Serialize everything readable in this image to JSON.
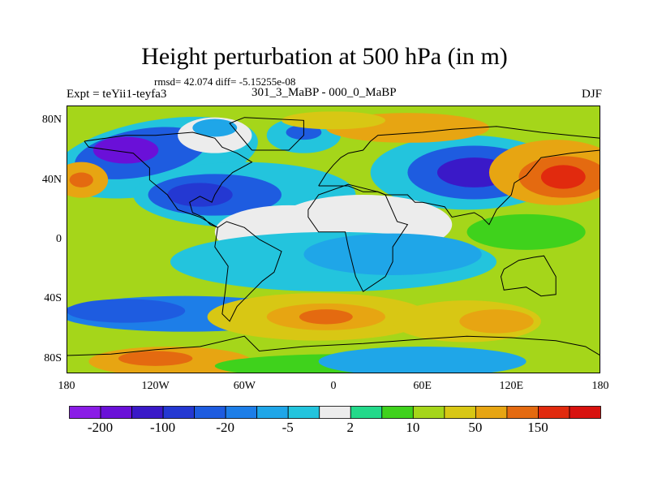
{
  "header": {
    "title": "Height perturbation at 500 hPa (in m)",
    "stats": "rmsd= 42.074 diff= -5.15255e-08",
    "expt": "Expt = teYii1-teyfa3",
    "center_label": "301_3_MaBP - 000_0_MaBP",
    "season": "DJF"
  },
  "chart_data": {
    "type": "heatmap",
    "title": "Height perturbation at 500 hPa (in m)",
    "units": "m",
    "x_ticks": [
      "180",
      "120W",
      "60W",
      "0",
      "60E",
      "120E",
      "180"
    ],
    "x_tick_values": [
      -180,
      -120,
      -60,
      0,
      60,
      120,
      180
    ],
    "y_ticks": [
      "80N",
      "40N",
      "0",
      "40S",
      "80S"
    ],
    "y_tick_values": [
      80,
      40,
      0,
      -40,
      -80
    ],
    "xlim": [
      -180,
      180
    ],
    "ylim": [
      -90,
      90
    ],
    "colorbar": {
      "labels": [
        "-200",
        "-100",
        "-20",
        "-5",
        "2",
        "10",
        "50",
        "150"
      ],
      "levels": [
        -200,
        -150,
        -100,
        -50,
        -20,
        -10,
        -5,
        -2,
        2,
        5,
        10,
        20,
        50,
        100,
        150,
        200
      ],
      "colors": [
        "#8a1ce6",
        "#6a10d8",
        "#3a19c8",
        "#2438d2",
        "#1e5ce0",
        "#1d7ee8",
        "#1fa6e8",
        "#23c4dd",
        "#ececec",
        "#23d98a",
        "#3fd21c",
        "#a5d61a",
        "#d8c714",
        "#e7a512",
        "#e46a10",
        "#e12a0e",
        "#d8120f"
      ]
    },
    "features": [
      {
        "name": "positive max",
        "lon": 150,
        "lat": 42,
        "value": 200
      },
      {
        "name": "negative min",
        "lon": -140,
        "lat": 60,
        "value": -150
      },
      {
        "name": "negative min",
        "lon": 95,
        "lat": 45,
        "value": -150
      },
      {
        "name": "negative min",
        "lon": -80,
        "lat": 30,
        "value": -100
      },
      {
        "name": "positive center",
        "lon": -5,
        "lat": -50,
        "value": 120
      }
    ]
  },
  "colors": {
    "background": "#ffffff",
    "coastline": "#000000"
  }
}
